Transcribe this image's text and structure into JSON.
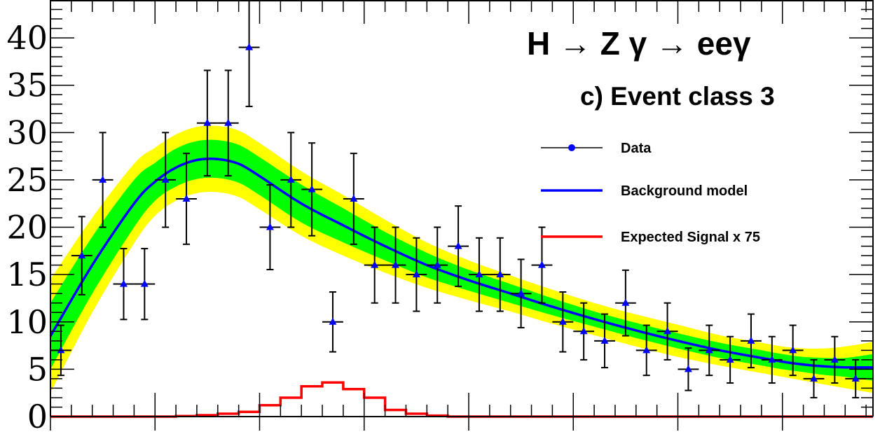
{
  "chart_data": {
    "type": "scatter",
    "title": "H → Z γ → eeγ",
    "subtitle": "c) Event class 3",
    "xlabel": "",
    "ylabel": "",
    "ylim": [
      0,
      44
    ],
    "yticks": [
      0,
      5,
      10,
      15,
      20,
      25,
      30,
      35,
      40
    ],
    "ytick_labels": [
      "0",
      "5",
      "10",
      "15",
      "20",
      "25",
      "30",
      "35",
      "40"
    ],
    "xlim": [
      0,
      39.33
    ],
    "major_xticks": [
      5,
      10,
      15,
      20,
      25,
      30,
      35
    ],
    "grid": false,
    "legend_position": "right",
    "legend": [
      "Data",
      "Background model",
      "Expected Signal x 75"
    ],
    "colors": {
      "data": "#0000ff",
      "errorbar": "#000000",
      "background": "#0000ff",
      "band_1sigma": "#00ff00",
      "band_2sigma": "#ffff00",
      "signal": "#ff0000"
    },
    "series": [
      {
        "name": "Data",
        "x": [
          0.5,
          1.5,
          2.5,
          3.5,
          4.5,
          5.5,
          6.5,
          7.5,
          8.5,
          9.5,
          10.5,
          11.5,
          12.5,
          13.5,
          14.5,
          15.5,
          16.5,
          17.5,
          18.5,
          19.5,
          20.5,
          21.5,
          22.5,
          23.5,
          24.5,
          25.5,
          26.5,
          27.5,
          28.5,
          29.5,
          30.5,
          31.5,
          32.5,
          33.5,
          34.5,
          35.5,
          36.5,
          37.5,
          38.5,
          39.5
        ],
        "y": [
          7,
          17,
          25,
          14,
          14,
          25,
          23,
          31,
          31,
          39,
          20,
          25,
          24,
          10,
          23,
          16,
          16,
          15,
          16,
          18,
          15,
          15,
          13,
          16,
          10,
          9,
          8,
          12,
          7,
          9,
          5,
          7,
          6,
          8,
          6,
          7,
          4,
          6,
          4,
          6
        ]
      },
      {
        "name": "Background model",
        "x": [
          0,
          2,
          4,
          5,
          6,
          7,
          8,
          9,
          10,
          12,
          14,
          16,
          18,
          20,
          22,
          24,
          26,
          28,
          30,
          32,
          34,
          35,
          36,
          37,
          38,
          39.33
        ],
        "y": [
          8.5,
          16.0,
          22.5,
          24.8,
          26.3,
          27.1,
          27.2,
          26.7,
          25.4,
          22.5,
          20.2,
          18.0,
          16.0,
          14.4,
          13.0,
          11.6,
          10.3,
          9.1,
          8.0,
          7.0,
          6.2,
          5.8,
          5.5,
          5.3,
          5.2,
          5.2
        ],
        "band_1sigma": [
          3.5,
          3.0,
          2.5,
          2.0,
          2.0,
          2.0,
          2.0,
          2.0,
          2.0,
          2.0,
          1.8,
          1.5,
          1.3,
          1.1,
          1.0,
          0.9,
          0.8,
          0.8,
          0.8,
          0.8,
          0.8,
          0.8,
          0.8,
          0.9,
          1.0,
          1.4
        ],
        "band_2sigma": [
          6.0,
          5.0,
          4.2,
          3.6,
          3.5,
          3.5,
          3.5,
          3.5,
          3.5,
          3.4,
          3.2,
          2.8,
          2.4,
          2.1,
          1.9,
          1.8,
          1.7,
          1.7,
          1.7,
          1.6,
          1.6,
          1.6,
          1.7,
          1.9,
          2.2,
          2.7
        ]
      },
      {
        "name": "Expected Signal x 75",
        "edges": [
          0,
          1,
          2,
          3,
          4,
          5,
          6,
          7,
          8,
          9,
          10,
          11,
          12,
          13,
          14,
          15,
          16,
          17,
          18,
          19,
          20,
          39.33
        ],
        "values": [
          0,
          0,
          0,
          0,
          0,
          0,
          0.05,
          0.15,
          0.3,
          0.5,
          1.2,
          2.0,
          3.2,
          3.6,
          2.9,
          2.0,
          0.7,
          0.3,
          0.1,
          0,
          0
        ]
      }
    ]
  }
}
